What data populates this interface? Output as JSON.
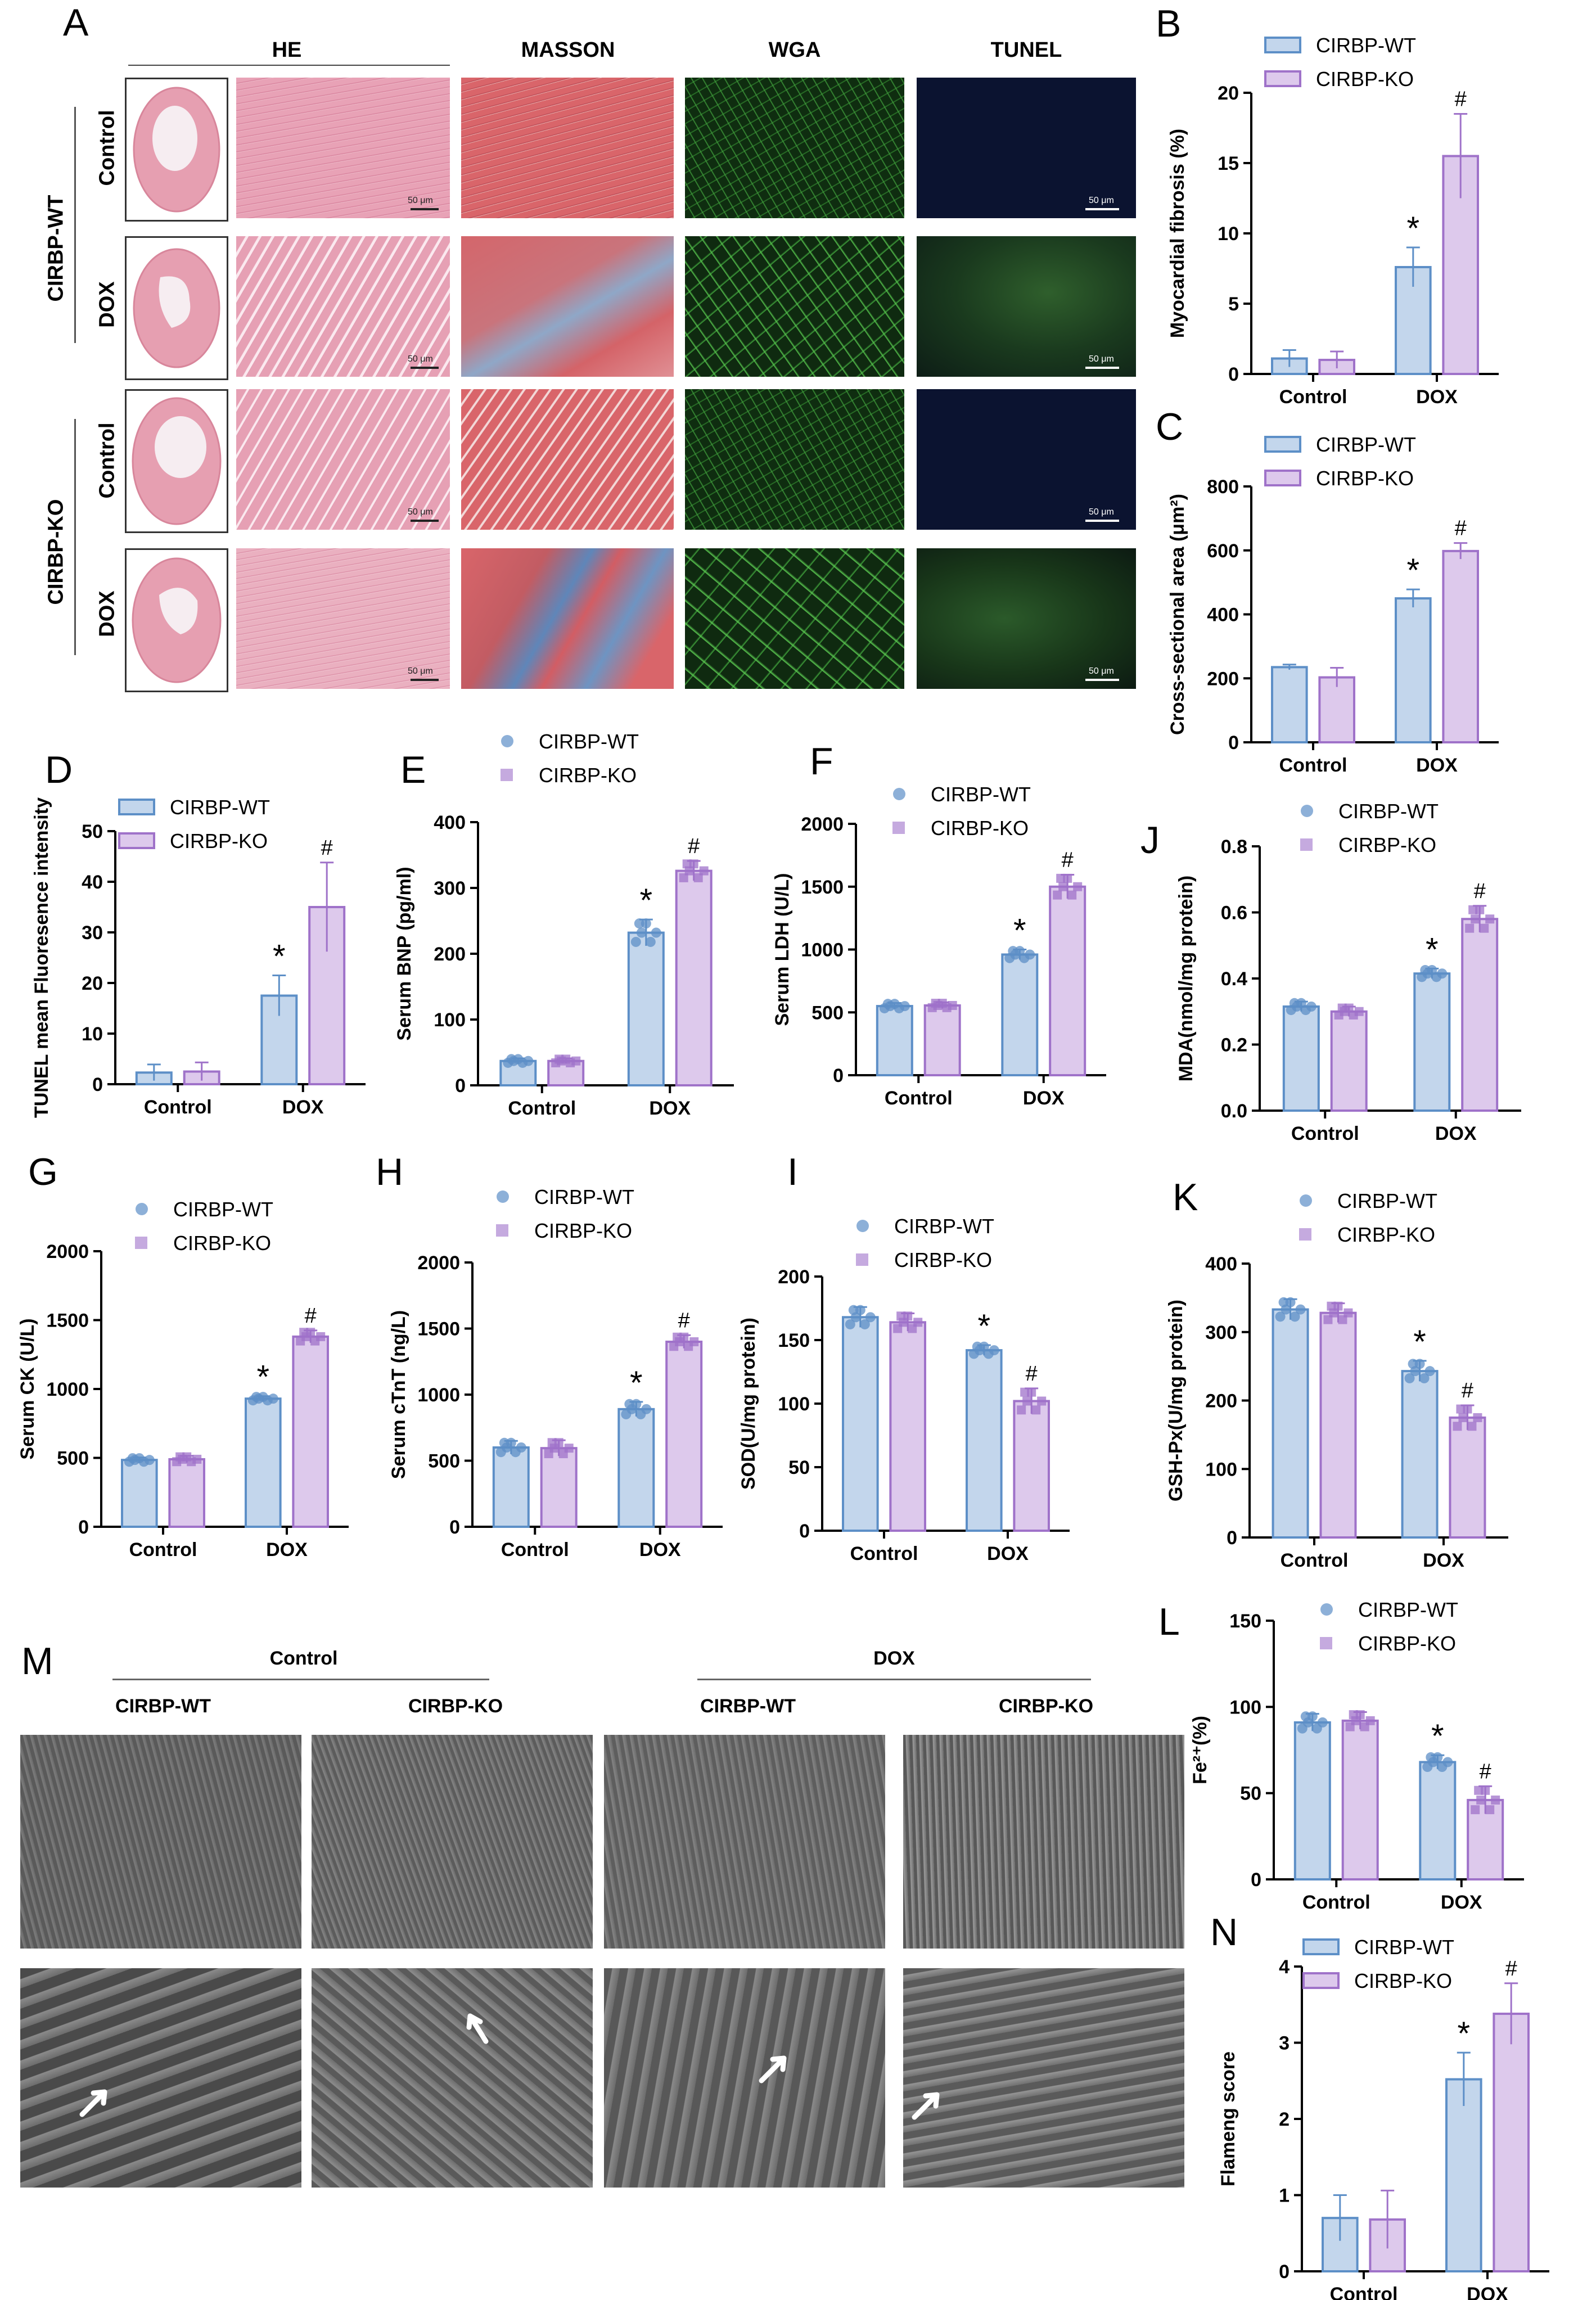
{
  "panels": {
    "A": "A",
    "B": "B",
    "C": "C",
    "D": "D",
    "E": "E",
    "F": "F",
    "G": "G",
    "H": "H",
    "I": "I",
    "J": "J",
    "K": "K",
    "L": "L",
    "M": "M",
    "N": "N"
  },
  "panel_a": {
    "columns": [
      "HE",
      "MASSON",
      "WGA",
      "TUNEL"
    ],
    "group_labels": [
      "CIRBP-WT",
      "CIRBP-KO"
    ],
    "row_labels": [
      "Control",
      "DOX",
      "Control",
      "DOX"
    ],
    "scale_bar": "50 μm"
  },
  "panel_m": {
    "groups": [
      "Control",
      "DOX"
    ],
    "columns": [
      "CIRBP-WT",
      "CIRBP-KO",
      "CIRBP-WT",
      "CIRBP-KO"
    ]
  },
  "colors": {
    "wt_fill": "#c3d6ec",
    "wt_edge": "#5d8fc7",
    "ko_fill": "#ddc9ec",
    "ko_edge": "#9f72c9",
    "he_bg": "#e8a6b8",
    "masson_bg": "#d96a6f",
    "wga_bg": "#123a12",
    "tunel_bg": "#0c1430",
    "em_bg": "#6f6f6f"
  },
  "chart_data": [
    {
      "id": "B",
      "type": "bar",
      "categories": [
        "Control",
        "DOX"
      ],
      "ylabel": "Myocardial fibrosis (%)",
      "ylim": [
        0,
        20
      ],
      "yticks": [
        0,
        5,
        10,
        15,
        20
      ],
      "series": [
        {
          "name": "CIRBP-WT",
          "values": [
            1.1,
            7.6
          ],
          "errors": [
            0.6,
            1.4
          ]
        },
        {
          "name": "CIRBP-KO",
          "values": [
            1.0,
            15.5
          ],
          "errors": [
            0.6,
            3.0
          ]
        }
      ],
      "annotations": [
        "*",
        "#"
      ],
      "points": false,
      "legend": "top"
    },
    {
      "id": "C",
      "type": "bar",
      "categories": [
        "Control",
        "DOX"
      ],
      "ylabel": "Cross-sectional area (μm²)",
      "ylim": [
        0,
        800
      ],
      "yticks": [
        0,
        200,
        400,
        600,
        800
      ],
      "series": [
        {
          "name": "CIRBP-WT",
          "values": [
            235,
            450
          ],
          "errors": [
            8,
            28
          ]
        },
        {
          "name": "CIRBP-KO",
          "values": [
            203,
            598
          ],
          "errors": [
            30,
            25
          ]
        }
      ],
      "annotations": [
        "*",
        "#"
      ],
      "points": false,
      "legend": "top"
    },
    {
      "id": "D",
      "type": "bar",
      "categories": [
        "Control",
        "DOX"
      ],
      "ylabel": "TUNEL mean Fluoresence intensity",
      "ylim": [
        0,
        50
      ],
      "yticks": [
        0,
        10,
        20,
        30,
        40,
        50
      ],
      "series": [
        {
          "name": "CIRBP-WT",
          "values": [
            2.3,
            17.5
          ],
          "errors": [
            1.6,
            4.0
          ]
        },
        {
          "name": "CIRBP-KO",
          "values": [
            2.5,
            35.0
          ],
          "errors": [
            1.8,
            8.8
          ]
        }
      ],
      "annotations": [
        "*",
        "#"
      ],
      "points": false,
      "legend": "top"
    },
    {
      "id": "E",
      "type": "bar",
      "categories": [
        "Control",
        "DOX"
      ],
      "ylabel": "Serum BNP (pg/ml)",
      "ylim": [
        0,
        400
      ],
      "yticks": [
        0,
        100,
        200,
        300,
        400
      ],
      "series": [
        {
          "name": "CIRBP-WT",
          "values": [
            37,
            232
          ],
          "errors": [
            4,
            20
          ]
        },
        {
          "name": "CIRBP-KO",
          "values": [
            37,
            326
          ],
          "errors": [
            4,
            15
          ]
        }
      ],
      "annotations": [
        "*",
        "#"
      ],
      "points": true,
      "legend": "top"
    },
    {
      "id": "F",
      "type": "bar",
      "categories": [
        "Control",
        "DOX"
      ],
      "ylabel": "Serum LDH (U/L)",
      "ylim": [
        0,
        2000
      ],
      "yticks": [
        0,
        500,
        1000,
        1500,
        2000
      ],
      "series": [
        {
          "name": "CIRBP-WT",
          "values": [
            550,
            960
          ],
          "errors": [
            25,
            40
          ]
        },
        {
          "name": "CIRBP-KO",
          "values": [
            555,
            1500
          ],
          "errors": [
            25,
            95
          ]
        }
      ],
      "annotations": [
        "*",
        "#"
      ],
      "points": true,
      "legend": "top"
    },
    {
      "id": "J",
      "type": "bar",
      "categories": [
        "Control",
        "DOX"
      ],
      "ylabel": "MDA(nmol/mg protein)",
      "ylim": [
        0,
        0.8
      ],
      "yticks": [
        0.0,
        0.2,
        0.4,
        0.6,
        0.8
      ],
      "series": [
        {
          "name": "CIRBP-WT",
          "values": [
            0.315,
            0.415
          ],
          "errors": [
            0.015,
            0.015
          ]
        },
        {
          "name": "CIRBP-KO",
          "values": [
            0.3,
            0.58
          ],
          "errors": [
            0.015,
            0.04
          ]
        }
      ],
      "annotations": [
        "*",
        "#"
      ],
      "points": true,
      "legend": "top"
    },
    {
      "id": "G",
      "type": "bar",
      "categories": [
        "Control",
        "DOX"
      ],
      "ylabel": "Serum CK (U/L)",
      "ylim": [
        0,
        2000
      ],
      "yticks": [
        0,
        500,
        1000,
        1500,
        2000
      ],
      "series": [
        {
          "name": "CIRBP-WT",
          "values": [
            485,
            930
          ],
          "errors": [
            18,
            18
          ]
        },
        {
          "name": "CIRBP-KO",
          "values": [
            490,
            1380
          ],
          "errors": [
            25,
            45
          ]
        }
      ],
      "annotations": [
        "*",
        "#"
      ],
      "points": true,
      "legend": "top"
    },
    {
      "id": "H",
      "type": "bar",
      "categories": [
        "Control",
        "DOX"
      ],
      "ylabel": "Serum cTnT (ng/L)",
      "ylim": [
        0,
        2000
      ],
      "yticks": [
        0,
        500,
        1000,
        1500,
        2000
      ],
      "series": [
        {
          "name": "CIRBP-WT",
          "values": [
            600,
            890
          ],
          "errors": [
            50,
            55
          ]
        },
        {
          "name": "CIRBP-KO",
          "values": [
            595,
            1400
          ],
          "errors": [
            60,
            50
          ]
        }
      ],
      "annotations": [
        "*",
        "#"
      ],
      "points": true,
      "legend": "top"
    },
    {
      "id": "I",
      "type": "bar",
      "categories": [
        "Control",
        "DOX"
      ],
      "ylabel": "SOD(U/mg protein)",
      "ylim": [
        0,
        200
      ],
      "yticks": [
        0,
        50,
        100,
        150,
        200
      ],
      "series": [
        {
          "name": "CIRBP-WT",
          "values": [
            168,
            142
          ],
          "errors": [
            8,
            4
          ]
        },
        {
          "name": "CIRBP-KO",
          "values": [
            164,
            102
          ],
          "errors": [
            7,
            10
          ]
        }
      ],
      "annotations": [
        "*",
        "#"
      ],
      "points": true,
      "legend": "top"
    },
    {
      "id": "K",
      "type": "bar",
      "categories": [
        "Control",
        "DOX"
      ],
      "ylabel": "GSH-Px(U/mg protein)",
      "ylim": [
        0,
        400
      ],
      "yticks": [
        0,
        100,
        200,
        300,
        400
      ],
      "series": [
        {
          "name": "CIRBP-WT",
          "values": [
            333,
            243
          ],
          "errors": [
            15,
            15
          ]
        },
        {
          "name": "CIRBP-KO",
          "values": [
            328,
            175
          ],
          "errors": [
            14,
            18
          ]
        }
      ],
      "annotations": [
        "*",
        "#"
      ],
      "points": true,
      "legend": "top"
    },
    {
      "id": "L",
      "type": "bar",
      "categories": [
        "Control",
        "DOX"
      ],
      "ylabel": "Fe²⁺(%)",
      "ylim": [
        0,
        150
      ],
      "yticks": [
        0,
        50,
        100,
        150
      ],
      "series": [
        {
          "name": "CIRBP-WT",
          "values": [
            91,
            68
          ],
          "errors": [
            5,
            4
          ]
        },
        {
          "name": "CIRBP-KO",
          "values": [
            92,
            46
          ],
          "errors": [
            5,
            8
          ]
        }
      ],
      "annotations": [
        "*",
        "#"
      ],
      "points": true,
      "legend": "top"
    },
    {
      "id": "N",
      "type": "bar",
      "categories": [
        "Control",
        "DOX"
      ],
      "ylabel": "Flameng score",
      "ylim": [
        0,
        4
      ],
      "yticks": [
        0,
        1,
        2,
        3,
        4
      ],
      "series": [
        {
          "name": "CIRBP-WT",
          "values": [
            0.7,
            2.52
          ],
          "errors": [
            0.3,
            0.35
          ]
        },
        {
          "name": "CIRBP-KO",
          "values": [
            0.68,
            3.38
          ],
          "errors": [
            0.38,
            0.4
          ]
        }
      ],
      "annotations": [
        "*",
        "#"
      ],
      "points": false,
      "legend": "top"
    }
  ]
}
